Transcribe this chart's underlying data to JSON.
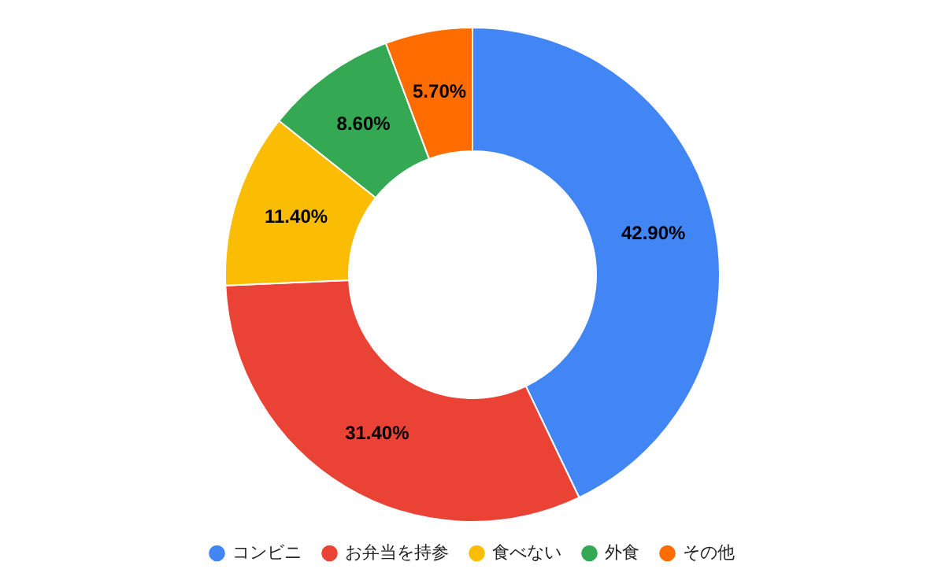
{
  "chart_data": {
    "type": "donut",
    "categories": [
      "コンビニ",
      "お弁当を持参",
      "食べない",
      "外食",
      "その他"
    ],
    "values": [
      42.9,
      31.4,
      11.4,
      8.6,
      5.7
    ],
    "colors": [
      "#4285f4",
      "#ea4335",
      "#fbbc04",
      "#34a853",
      "#ff6d01"
    ],
    "value_labels": [
      "42.90%",
      "31.40%",
      "11.40%",
      "8.60%",
      "5.70%"
    ],
    "legend": "bottom"
  }
}
